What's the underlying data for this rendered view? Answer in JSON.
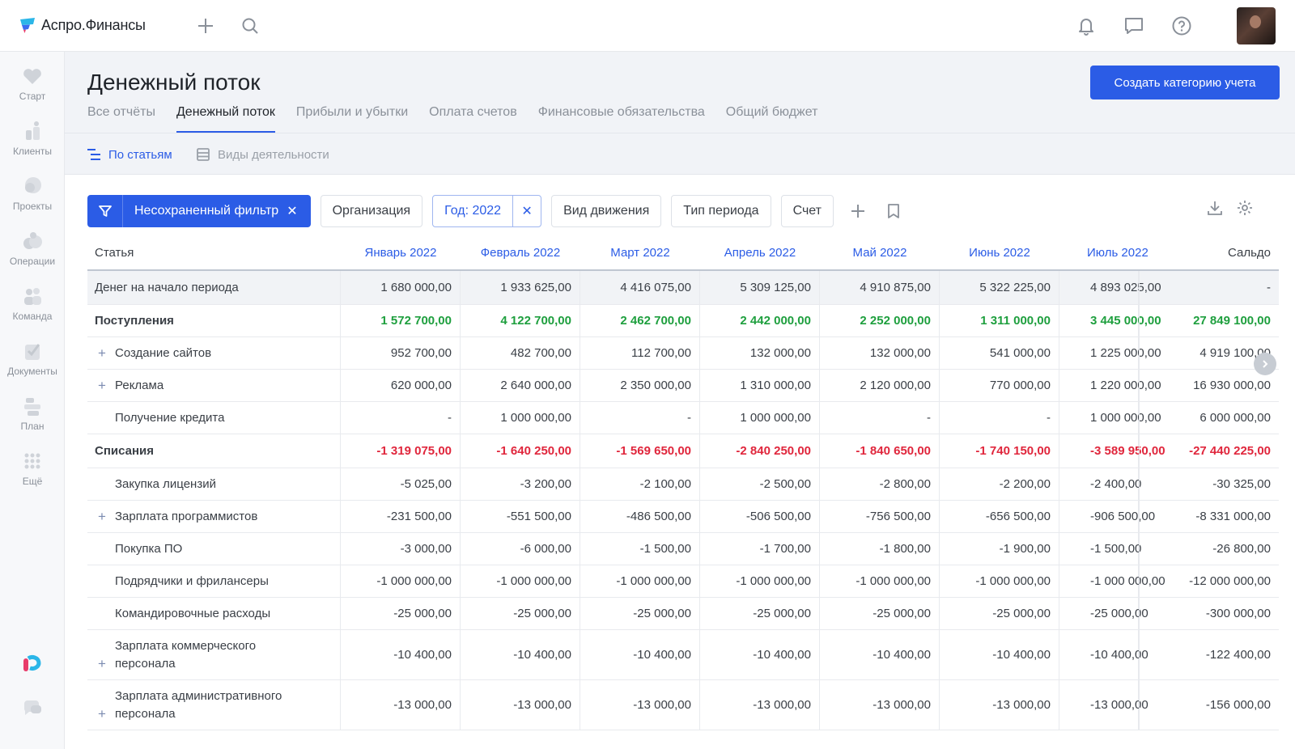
{
  "app": {
    "name": "Аспро.Финансы"
  },
  "sidebar": {
    "items": [
      {
        "label": "Старт",
        "icon": "heart-icon"
      },
      {
        "label": "Клиенты",
        "icon": "clients-icon"
      },
      {
        "label": "Проекты",
        "icon": "projects-icon"
      },
      {
        "label": "Операции",
        "icon": "operations-icon"
      },
      {
        "label": "Команда",
        "icon": "team-icon"
      },
      {
        "label": "Документы",
        "icon": "documents-icon"
      },
      {
        "label": "План",
        "icon": "plan-icon"
      },
      {
        "label": "Ещё",
        "icon": "more-grid-icon"
      }
    ]
  },
  "header": {
    "title": "Денежный поток",
    "create_button": "Создать категорию учета",
    "tabs": [
      {
        "label": "Все отчёты"
      },
      {
        "label": "Денежный поток"
      },
      {
        "label": "Прибыли и убытки"
      },
      {
        "label": "Оплата счетов"
      },
      {
        "label": "Финансовые обязательства"
      },
      {
        "label": "Общий бюджет"
      }
    ],
    "subnav": [
      {
        "label": "По статьям"
      },
      {
        "label": "Виды деятельности"
      }
    ]
  },
  "filters": {
    "main": "Несохраненный фильтр",
    "organization": "Организация",
    "year": "Год: 2022",
    "movement": "Вид движения",
    "period_type": "Тип периода",
    "account": "Счет"
  },
  "table": {
    "columns": [
      "Статья",
      "Январь 2022",
      "Февраль 2022",
      "Март 2022",
      "Апрель 2022",
      "Май 2022",
      "Июнь 2022",
      "Июль 2022",
      "Сальдо"
    ],
    "rows": [
      {
        "label": "Денег на начало периода",
        "values": [
          "1 680 000,00",
          "1 933 625,00",
          "4 416 075,00",
          "5 309 125,00",
          "4 910 875,00",
          "5 322 225,00",
          "4 893 025,00",
          "-"
        ]
      },
      {
        "label": "Поступления",
        "values": [
          "1 572 700,00",
          "4 122 700,00",
          "2 462 700,00",
          "2 442 000,00",
          "2 252 000,00",
          "1 311 000,00",
          "3 445 000,00",
          "27 849 100,00"
        ]
      },
      {
        "label": "Создание сайтов",
        "values": [
          "952 700,00",
          "482 700,00",
          "112 700,00",
          "132 000,00",
          "132 000,00",
          "541 000,00",
          "1 225 000,00",
          "4 919 100,00"
        ]
      },
      {
        "label": "Реклама",
        "values": [
          "620 000,00",
          "2 640 000,00",
          "2 350 000,00",
          "1 310 000,00",
          "2 120 000,00",
          "770 000,00",
          "1 220 000,00",
          "16 930 000,00"
        ]
      },
      {
        "label": "Получение кредита",
        "values": [
          "-",
          "1 000 000,00",
          "-",
          "1 000 000,00",
          "-",
          "-",
          "1 000 000,00",
          "6 000 000,00"
        ]
      },
      {
        "label": "Списания",
        "values": [
          "-1 319 075,00",
          "-1 640 250,00",
          "-1 569 650,00",
          "-2 840 250,00",
          "-1 840 650,00",
          "-1 740 150,00",
          "-3 589 950,00",
          "-27 440 225,00"
        ]
      },
      {
        "label": "Закупка лицензий",
        "values": [
          "-5 025,00",
          "-3 200,00",
          "-2 100,00",
          "-2 500,00",
          "-2 800,00",
          "-2 200,00",
          "-2 400,00",
          "-30 325,00"
        ]
      },
      {
        "label": "Зарплата программистов",
        "values": [
          "-231 500,00",
          "-551 500,00",
          "-486 500,00",
          "-506 500,00",
          "-756 500,00",
          "-656 500,00",
          "-906 500,00",
          "-8 331 000,00"
        ]
      },
      {
        "label": "Покупка ПО",
        "values": [
          "-3 000,00",
          "-6 000,00",
          "-1 500,00",
          "-1 700,00",
          "-1 800,00",
          "-1 900,00",
          "-1 500,00",
          "-26 800,00"
        ]
      },
      {
        "label": "Подрядчики и фрилансеры",
        "values": [
          "-1 000 000,00",
          "-1 000 000,00",
          "-1 000 000,00",
          "-1 000 000,00",
          "-1 000 000,00",
          "-1 000 000,00",
          "-1 000 000,00",
          "-12 000 000,00"
        ]
      },
      {
        "label": "Командировочные расходы",
        "values": [
          "-25 000,00",
          "-25 000,00",
          "-25 000,00",
          "-25 000,00",
          "-25 000,00",
          "-25 000,00",
          "-25 000,00",
          "-300 000,00"
        ]
      },
      {
        "label": "Зарплата коммерческого персонала",
        "values": [
          "-10 400,00",
          "-10 400,00",
          "-10 400,00",
          "-10 400,00",
          "-10 400,00",
          "-10 400,00",
          "-10 400,00",
          "-122 400,00"
        ]
      },
      {
        "label": "Зарплата административного персонала",
        "values": [
          "-13 000,00",
          "-13 000,00",
          "-13 000,00",
          "-13 000,00",
          "-13 000,00",
          "-13 000,00",
          "-13 000,00",
          "-156 000,00"
        ]
      }
    ]
  },
  "colors": {
    "accent": "#2b5ce6",
    "positive": "#1e9f3e",
    "negative": "#e0263c"
  }
}
